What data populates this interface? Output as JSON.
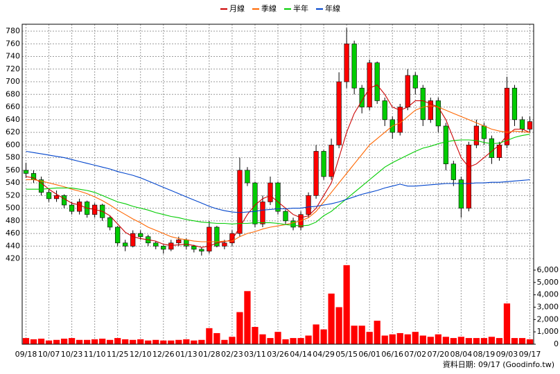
{
  "chart_data": {
    "type": "candlestick",
    "categories": [
      "09/18",
      null,
      null,
      "10/07",
      null,
      null,
      "10/23",
      null,
      null,
      "11/10",
      null,
      null,
      "11/25",
      null,
      null,
      "12/10",
      null,
      null,
      "12/26",
      null,
      null,
      "01/13",
      null,
      null,
      "01/28",
      null,
      null,
      "02/23",
      null,
      null,
      "03/11",
      null,
      null,
      "03/26",
      null,
      null,
      "04/14",
      null,
      null,
      "04/29",
      null,
      null,
      "05/15",
      null,
      null,
      "06/01",
      null,
      null,
      "06/16",
      null,
      null,
      "07/02",
      null,
      null,
      "07/20",
      null,
      null,
      "08/04",
      null,
      null,
      "08/19",
      null,
      null,
      "09/03",
      null,
      null,
      "09/17"
    ],
    "open": [
      560,
      555,
      545,
      525,
      515,
      520,
      505,
      495,
      510,
      490,
      505,
      485,
      470,
      445,
      440,
      460,
      455,
      445,
      440,
      435,
      445,
      450,
      440,
      435,
      432,
      470,
      440,
      445,
      460,
      560,
      540,
      475,
      510,
      540,
      495,
      480,
      470,
      490,
      520,
      590,
      550,
      600,
      700,
      760,
      690,
      660,
      730,
      670,
      640,
      620,
      660,
      710,
      690,
      640,
      670,
      630,
      570,
      545,
      500,
      600,
      630,
      610,
      580,
      600,
      690,
      640,
      625
    ],
    "high": [
      572,
      560,
      550,
      530,
      528,
      522,
      510,
      515,
      512,
      508,
      507,
      488,
      472,
      450,
      465,
      465,
      458,
      448,
      442,
      450,
      455,
      452,
      442,
      438,
      480,
      472,
      450,
      465,
      580,
      565,
      542,
      520,
      550,
      542,
      498,
      485,
      495,
      525,
      600,
      592,
      610,
      715,
      785,
      765,
      695,
      735,
      732,
      675,
      645,
      665,
      720,
      715,
      695,
      675,
      675,
      635,
      575,
      550,
      605,
      640,
      635,
      615,
      605,
      708,
      695,
      645,
      645
    ],
    "low": [
      548,
      540,
      520,
      510,
      510,
      500,
      490,
      490,
      485,
      485,
      480,
      465,
      440,
      432,
      438,
      450,
      440,
      435,
      428,
      432,
      440,
      435,
      430,
      425,
      428,
      438,
      435,
      440,
      455,
      535,
      470,
      470,
      505,
      490,
      475,
      465,
      465,
      485,
      515,
      545,
      545,
      595,
      690,
      680,
      650,
      655,
      665,
      630,
      610,
      615,
      655,
      680,
      630,
      635,
      620,
      560,
      535,
      485,
      495,
      595,
      600,
      570,
      575,
      595,
      630,
      620,
      620
    ],
    "close": [
      555,
      545,
      525,
      515,
      520,
      505,
      495,
      510,
      490,
      505,
      485,
      470,
      445,
      440,
      460,
      455,
      445,
      440,
      435,
      445,
      450,
      440,
      435,
      432,
      470,
      440,
      445,
      460,
      560,
      540,
      475,
      510,
      540,
      495,
      480,
      470,
      490,
      520,
      590,
      550,
      600,
      700,
      760,
      690,
      660,
      730,
      670,
      640,
      620,
      660,
      710,
      690,
      640,
      670,
      630,
      570,
      545,
      500,
      600,
      630,
      610,
      580,
      600,
      690,
      640,
      625,
      637
    ],
    "up_color": "#ff0000",
    "down_color": "#00cc00",
    "volume": {
      "axis": "y2",
      "color": "#ff0000",
      "values": [
        500,
        400,
        450,
        300,
        350,
        450,
        500,
        350,
        350,
        400,
        450,
        350,
        500,
        400,
        350,
        400,
        300,
        350,
        300,
        300,
        350,
        400,
        300,
        350,
        1300,
        900,
        350,
        600,
        2600,
        4300,
        1400,
        800,
        500,
        1000,
        400,
        500,
        500,
        700,
        1600,
        1200,
        4100,
        3000,
        6400,
        1500,
        1500,
        1000,
        1900,
        700,
        800,
        900,
        800,
        1000,
        700,
        600,
        800,
        600,
        500,
        600,
        500,
        500,
        500,
        600,
        500,
        3300,
        500,
        500,
        400
      ]
    },
    "series": [
      {
        "name": "月線",
        "color": "#cc0000",
        "values": [
          550,
          548,
          540,
          530,
          522,
          515,
          508,
          505,
          500,
          498,
          495,
          488,
          475,
          462,
          455,
          452,
          450,
          448,
          443,
          441,
          442,
          443,
          441,
          438,
          440,
          445,
          447,
          450,
          470,
          490,
          505,
          515,
          520,
          510,
          500,
          490,
          485,
          488,
          500,
          520,
          540,
          580,
          620,
          650,
          670,
          690,
          695,
          680,
          660,
          655,
          660,
          670,
          670,
          665,
          660,
          640,
          610,
          580,
          565,
          570,
          580,
          590,
          600,
          615,
          625,
          625,
          620
        ]
      },
      {
        "name": "季線",
        "color": "#ff6600",
        "values": [
          545,
          545,
          543,
          540,
          537,
          534,
          530,
          527,
          523,
          518,
          512,
          505,
          497,
          490,
          483,
          477,
          470,
          465,
          460,
          455,
          452,
          450,
          448,
          447,
          447,
          447,
          448,
          448,
          455,
          460,
          463,
          467,
          470,
          472,
          474,
          477,
          480,
          485,
          495,
          510,
          525,
          540,
          555,
          570,
          585,
          600,
          610,
          620,
          630,
          635,
          645,
          655,
          660,
          662,
          660,
          655,
          650,
          645,
          640,
          635,
          630,
          625,
          622,
          620,
          622,
          621,
          620
        ]
      },
      {
        "name": "半年",
        "color": "#00cc00",
        "values": [
          530,
          530,
          530,
          531,
          532,
          532,
          532,
          530,
          528,
          525,
          520,
          515,
          510,
          507,
          503,
          500,
          497,
          493,
          490,
          487,
          485,
          482,
          480,
          478,
          477,
          476,
          476,
          475,
          476,
          476,
          477,
          477,
          477,
          476,
          474,
          473,
          472,
          473,
          478,
          488,
          495,
          505,
          515,
          525,
          535,
          545,
          555,
          565,
          572,
          578,
          584,
          590,
          595,
          598,
          602,
          605,
          607,
          608,
          608,
          607,
          604,
          602,
          603,
          607,
          612,
          615,
          617
        ]
      },
      {
        "name": "年線",
        "color": "#0044cc",
        "values": [
          590,
          588,
          586,
          584,
          582,
          580,
          577,
          574,
          571,
          568,
          565,
          562,
          558,
          555,
          552,
          548,
          543,
          538,
          533,
          528,
          523,
          518,
          513,
          508,
          503,
          499,
          496,
          494,
          493,
          494,
          495,
          497,
          498,
          499,
          499,
          500,
          500,
          502,
          503,
          505,
          507,
          510,
          514,
          518,
          522,
          525,
          528,
          532,
          535,
          538,
          535,
          535,
          536,
          537,
          538,
          539,
          539,
          539,
          539,
          540,
          540,
          541,
          541,
          542,
          543,
          544,
          545
        ]
      }
    ],
    "ylim": [
      413,
      791
    ],
    "yticks": [
      420,
      440,
      460,
      480,
      500,
      520,
      540,
      560,
      580,
      600,
      620,
      640,
      660,
      680,
      700,
      720,
      740,
      760,
      780
    ],
    "y2lim": [
      0,
      6560
    ],
    "y2ticks": [
      0,
      {
        "value": 1000,
        "label": "1,000"
      },
      {
        "value": 2000,
        "label": "2,000"
      },
      {
        "value": 3000,
        "label": "3,000"
      },
      {
        "value": 4000,
        "label": "4,000"
      },
      {
        "value": 5000,
        "label": "5,000"
      },
      {
        "value": 6000,
        "label": "6,000"
      }
    ],
    "grid": true,
    "legend": "top",
    "footnote": "資料日期: 09/17 (Goodinfo.tw)"
  }
}
